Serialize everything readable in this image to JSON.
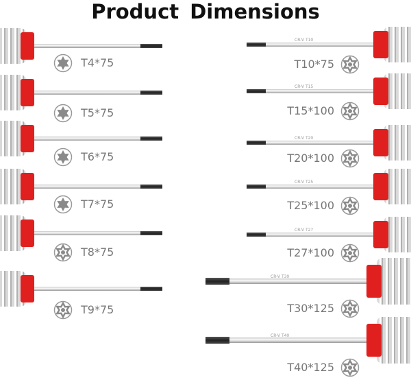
{
  "title": "Product Dimensions",
  "colors": {
    "handle_red": "#e0201e",
    "label_gray": "#777777",
    "icon_gray": "#8a8a8a"
  },
  "left": [
    {
      "label": "T4*75",
      "icon": "torx-solid-icon"
    },
    {
      "label": "T5*75",
      "icon": "torx-solid-icon"
    },
    {
      "label": "T6*75",
      "icon": "torx-solid-icon"
    },
    {
      "label": "T7*75",
      "icon": "torx-solid-icon"
    },
    {
      "label": "T8*75",
      "icon": "torx-security-icon"
    },
    {
      "label": "T9*75",
      "icon": "torx-security-icon"
    }
  ],
  "right": [
    {
      "label": "T10*75",
      "icon": "torx-security-icon",
      "mark": "CR-V T10"
    },
    {
      "label": "T15*100",
      "icon": "torx-security-icon",
      "mark": "CR-V T15"
    },
    {
      "label": "T20*100",
      "icon": "torx-security-icon",
      "mark": "CR-V T20"
    },
    {
      "label": "T25*100",
      "icon": "torx-security-icon",
      "mark": "CR-V T25"
    },
    {
      "label": "T27*100",
      "icon": "torx-security-icon",
      "mark": "CR-V T27"
    },
    {
      "label": "T30*125",
      "icon": "torx-security-icon",
      "mark": "CR-V T30"
    },
    {
      "label": "T40*125",
      "icon": "torx-security-icon",
      "mark": "CR-V T40"
    }
  ]
}
